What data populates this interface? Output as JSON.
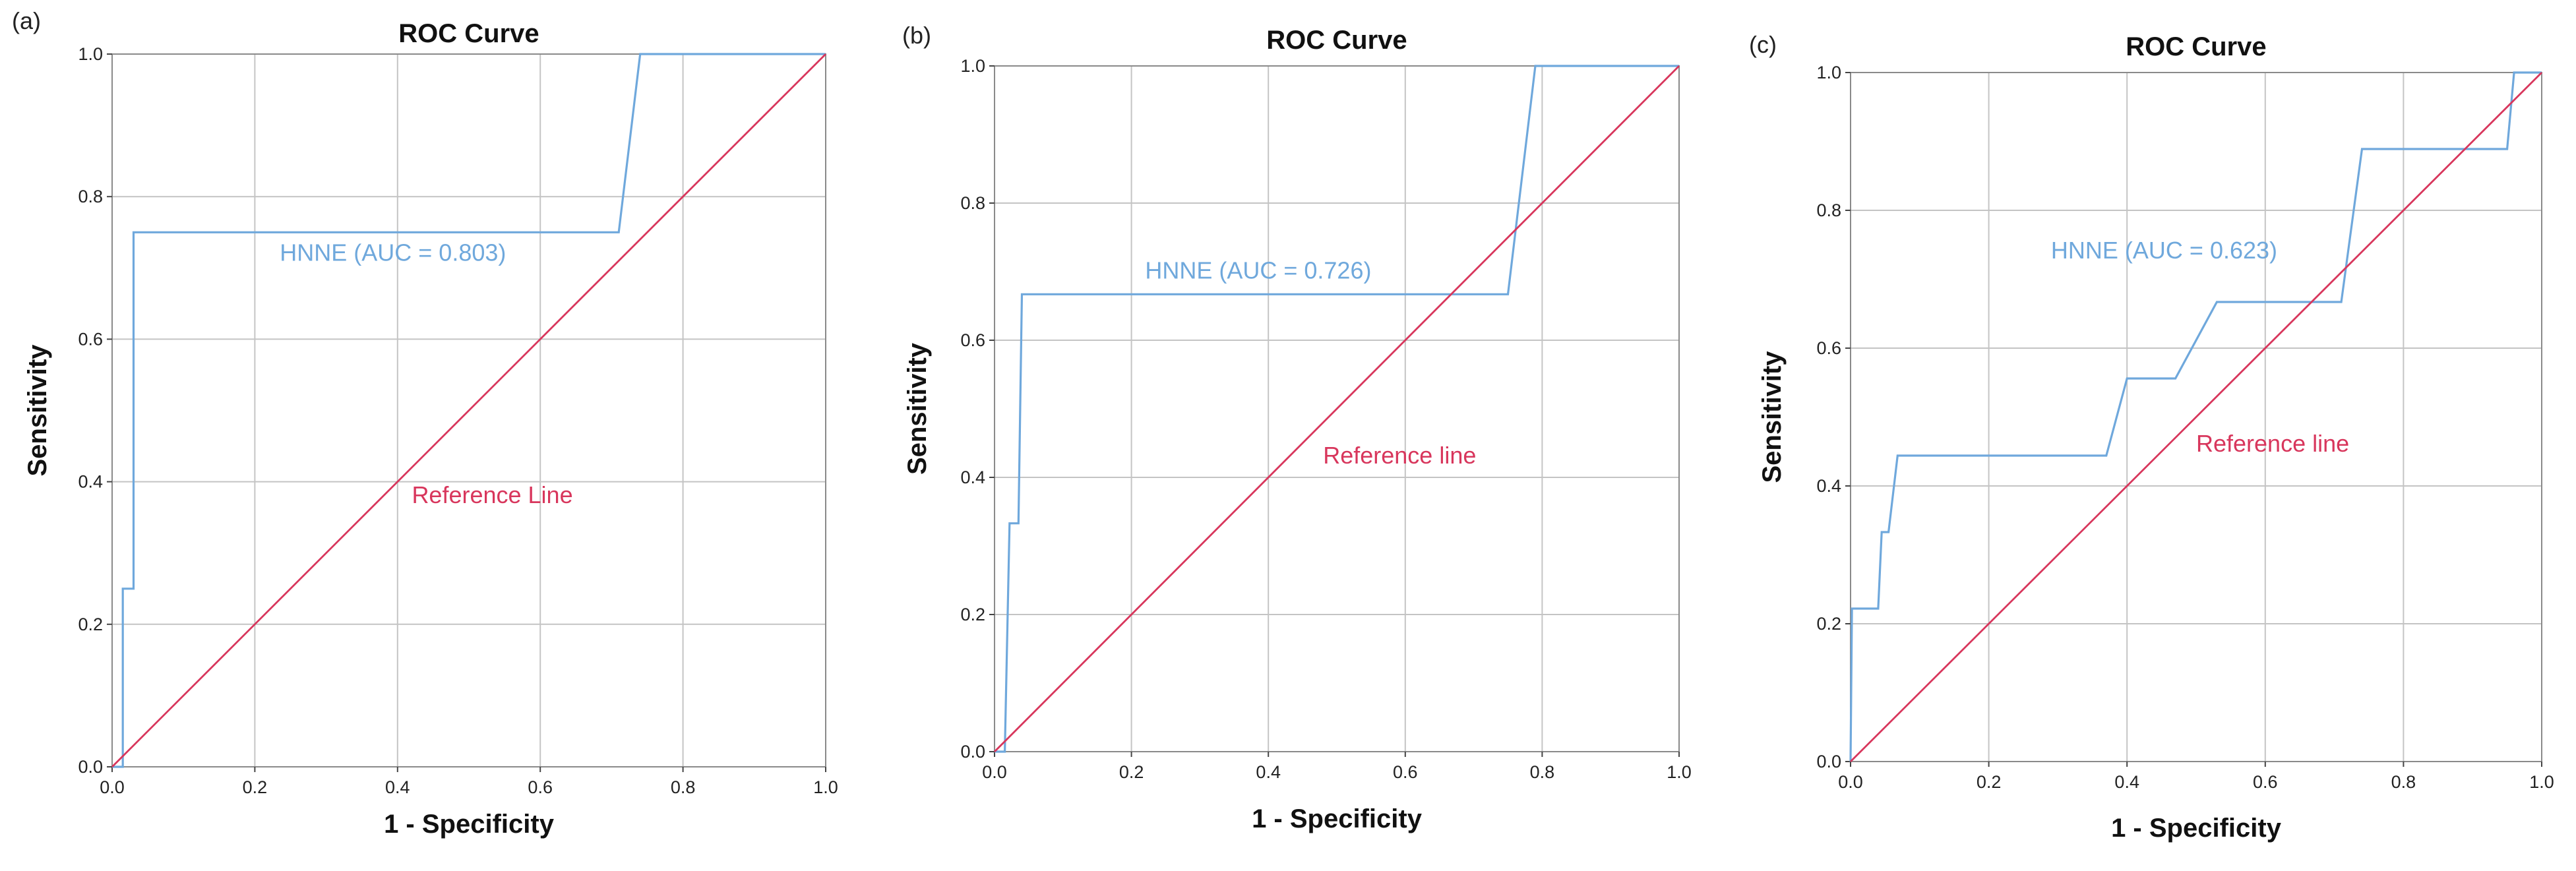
{
  "chart_data": [
    {
      "panel_label": "(a)",
      "type": "line",
      "title": "ROC Curve",
      "xlabel": "1 - Specificity",
      "ylabel": "Sensitivity",
      "xlim": [
        0,
        1
      ],
      "ylim": [
        0,
        1
      ],
      "xticks": [
        "0.0",
        "0.2",
        "0.4",
        "0.6",
        "0.8",
        "1.0"
      ],
      "yticks": [
        "0.0",
        "0.2",
        "0.4",
        "0.6",
        "0.8",
        "1.0"
      ],
      "grid": true,
      "series": [
        {
          "name": "HNNE (AUC = 0.803)",
          "color": "#6fa8dc",
          "points": [
            [
              0,
              0
            ],
            [
              0.015,
              0
            ],
            [
              0.015,
              0.25
            ],
            [
              0.03,
              0.25
            ],
            [
              0.03,
              0.75
            ],
            [
              0.71,
              0.75
            ],
            [
              0.74,
              1.0
            ],
            [
              1.0,
              1.0
            ]
          ]
        },
        {
          "name": "Reference Line",
          "color": "#d8365c",
          "points": [
            [
              0,
              0
            ],
            [
              1,
              1
            ]
          ]
        }
      ]
    },
    {
      "panel_label": "(b)",
      "type": "line",
      "title": "ROC Curve",
      "xlabel": "1 - Specificity",
      "ylabel": "Sensitivity",
      "xlim": [
        0,
        1
      ],
      "ylim": [
        0,
        1
      ],
      "xticks": [
        "0.0",
        "0.2",
        "0.4",
        "0.6",
        "0.8",
        "1.0"
      ],
      "yticks": [
        "0.0",
        "0.2",
        "0.4",
        "0.6",
        "0.8",
        "1.0"
      ],
      "grid": true,
      "series": [
        {
          "name": "HNNE (AUC = 0.726)",
          "color": "#6fa8dc",
          "points": [
            [
              0,
              0
            ],
            [
              0.015,
              0.0
            ],
            [
              0.022,
              0.333
            ],
            [
              0.035,
              0.333
            ],
            [
              0.04,
              0.667
            ],
            [
              0.75,
              0.667
            ],
            [
              0.79,
              1.0
            ],
            [
              1.0,
              1.0
            ]
          ]
        },
        {
          "name": "Reference line",
          "color": "#d8365c",
          "points": [
            [
              0,
              0
            ],
            [
              1,
              1
            ]
          ]
        }
      ]
    },
    {
      "panel_label": "(c)",
      "type": "line",
      "title": "ROC Curve",
      "xlabel": "1 - Specificity",
      "ylabel": "Sensitivity",
      "xlim": [
        0,
        1
      ],
      "ylim": [
        0,
        1
      ],
      "xticks": [
        "0.0",
        "0.2",
        "0.4",
        "0.6",
        "0.8",
        "1.0"
      ],
      "yticks": [
        "0.0",
        "0.2",
        "0.4",
        "0.6",
        "0.8",
        "1.0"
      ],
      "grid": true,
      "series": [
        {
          "name": "HNNE (AUC = 0.623)",
          "color": "#6fa8dc",
          "points": [
            [
              0,
              0
            ],
            [
              0.002,
              0.222
            ],
            [
              0.04,
              0.222
            ],
            [
              0.045,
              0.333
            ],
            [
              0.055,
              0.333
            ],
            [
              0.068,
              0.444
            ],
            [
              0.37,
              0.444
            ],
            [
              0.4,
              0.556
            ],
            [
              0.47,
              0.556
            ],
            [
              0.53,
              0.667
            ],
            [
              0.71,
              0.667
            ],
            [
              0.74,
              0.889
            ],
            [
              0.95,
              0.889
            ],
            [
              0.96,
              1.0
            ],
            [
              1.0,
              1.0
            ]
          ]
        },
        {
          "name": "Reference line",
          "color": "#d8365c",
          "points": [
            [
              0,
              0
            ],
            [
              1,
              1
            ]
          ]
        }
      ]
    }
  ]
}
